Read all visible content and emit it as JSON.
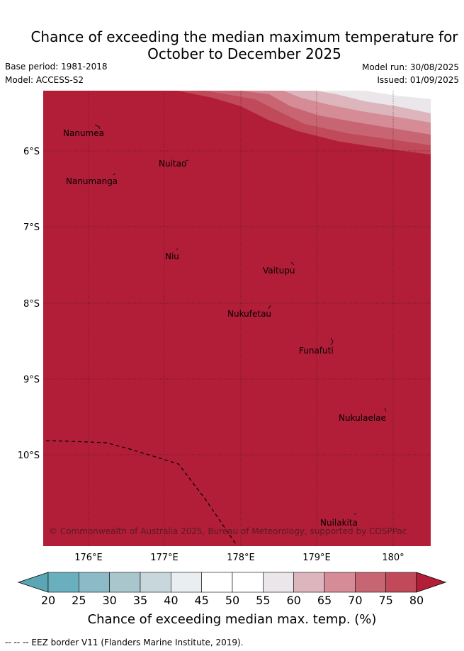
{
  "header": {
    "title_line1": "Chance of exceeding the median maximum temperature for",
    "title_line2": "October to December 2025",
    "base_period": "Base period: 1981-2018",
    "model": "Model: ACCESS-S2",
    "model_run": "Model run: 30/08/2025",
    "issued": "Issued: 01/09/2025"
  },
  "map": {
    "lat_labels": [
      "6°S",
      "7°S",
      "8°S",
      "9°S",
      "10°S"
    ],
    "lon_labels": [
      "176°E",
      "177°E",
      "178°E",
      "179°E",
      "180°"
    ],
    "places": [
      "Nanumea",
      "Nuitao",
      "Nanumanga",
      "Niu",
      "Vaitupu",
      "Nukufetau",
      "Funafuti",
      "Nukulaelae",
      "Nuilakita"
    ],
    "copyright": "© Commonwealth of Australia 2025, Bureau of Meteorology, supported by COSPPac",
    "dominant_color": "#b21e37",
    "eez_border": "dashed black line"
  },
  "colorbar": {
    "ticks": [
      "20",
      "25",
      "30",
      "35",
      "40",
      "45",
      "50",
      "55",
      "60",
      "65",
      "70",
      "75",
      "80"
    ],
    "colors": [
      "#6aafbd",
      "#8cbac6",
      "#a9c6cd",
      "#c8d7dc",
      "#e9eef1",
      "#ffffff",
      "#ffffff",
      "#eae6e9",
      "#ddb5bd",
      "#d58c97",
      "#c76672",
      "#c04a59",
      "#b21e37"
    ],
    "under_color": "#5aa6b5",
    "over_color": "#b21e37",
    "label": "Chance of exceeding median max. temp. (%)"
  },
  "footer": {
    "legend_text": "--  --  -- EEZ border V11 (Flanders Marine Institute, 2019)."
  }
}
